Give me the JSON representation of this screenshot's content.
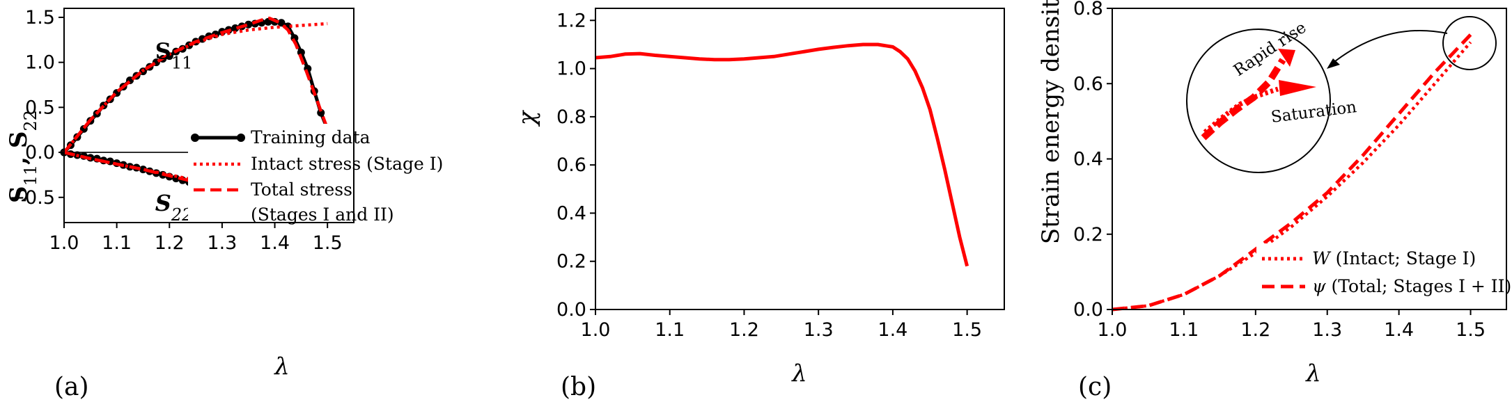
{
  "colors": {
    "red": "#ff0000",
    "black": "#000000"
  },
  "chart_data": [
    {
      "panel_label": "(a)",
      "type": "line",
      "xlabel": "λ",
      "ylabel": "S11, S22",
      "ylabel_parts": {
        "s1": "S",
        "sub1": "11",
        "comma": ", ",
        "s2": "S",
        "sub2": "22"
      },
      "xlim": [
        1.0,
        1.55
      ],
      "ylim": [
        -0.78,
        1.6
      ],
      "xticks": [
        1.0,
        1.1,
        1.2,
        1.3,
        1.4,
        1.5
      ],
      "xtick_labels": [
        "1.0",
        "1.1",
        "1.2",
        "1.3",
        "1.4",
        "1.5"
      ],
      "yticks": [
        -0.5,
        0.0,
        0.5,
        1.0,
        1.5
      ],
      "ytick_labels": [
        "−0.5",
        "0.0",
        "0.5",
        "1.0",
        "1.5"
      ],
      "hline": 0,
      "annotations": [
        {
          "base": "S",
          "sub": "11",
          "at": [
            1.12,
            1.0
          ]
        },
        {
          "base": "S",
          "sub": "22",
          "at": [
            1.12,
            -0.48
          ]
        }
      ],
      "legend": [
        {
          "label": "Training data",
          "style": "black-marker"
        },
        {
          "label": "Intact stress (Stage I)",
          "style": "red-dotted"
        },
        {
          "label": "Total stress",
          "style": "red-dashed"
        },
        {
          "label": "(Stages I and II)",
          "style": "none"
        }
      ],
      "series": [
        {
          "name": "Training data",
          "component": "S11",
          "x": [
            1.0,
            1.0125,
            1.025,
            1.0375,
            1.05,
            1.0625,
            1.075,
            1.0875,
            1.1,
            1.1125,
            1.125,
            1.1375,
            1.15,
            1.1625,
            1.175,
            1.1875,
            1.2,
            1.2125,
            1.225,
            1.2375,
            1.25,
            1.2625,
            1.275,
            1.2875,
            1.3,
            1.3125,
            1.325,
            1.3375,
            1.35,
            1.3625,
            1.375,
            1.3875,
            1.4,
            1.4125,
            1.425,
            1.4375,
            1.45,
            1.4625,
            1.475,
            1.4875,
            1.5
          ],
          "y": [
            0.0,
            0.08,
            0.17,
            0.26,
            0.35,
            0.43,
            0.52,
            0.59,
            0.66,
            0.73,
            0.8,
            0.85,
            0.9,
            0.95,
            1.0,
            1.04,
            1.07,
            1.12,
            1.15,
            1.19,
            1.23,
            1.26,
            1.29,
            1.31,
            1.34,
            1.36,
            1.38,
            1.4,
            1.42,
            1.43,
            1.44,
            1.45,
            1.45,
            1.44,
            1.4,
            1.27,
            1.11,
            0.93,
            0.68,
            0.44,
            0.26
          ]
        },
        {
          "name": "Training data",
          "component": "S22",
          "x": [
            1.0,
            1.0125,
            1.025,
            1.0375,
            1.05,
            1.0625,
            1.075,
            1.0875,
            1.1,
            1.1125,
            1.125,
            1.1375,
            1.15,
            1.1625,
            1.175,
            1.1875,
            1.2,
            1.2125,
            1.225,
            1.2375,
            1.25,
            1.2625,
            1.275,
            1.2875,
            1.3,
            1.3125,
            1.325,
            1.3375,
            1.35,
            1.3625,
            1.375,
            1.3875,
            1.4,
            1.4125,
            1.425,
            1.4375,
            1.45,
            1.4625,
            1.475,
            1.4875,
            1.5
          ],
          "y": [
            0.0,
            -0.02,
            -0.03,
            -0.04,
            -0.06,
            -0.07,
            -0.09,
            -0.1,
            -0.12,
            -0.14,
            -0.16,
            -0.17,
            -0.19,
            -0.21,
            -0.23,
            -0.25,
            -0.27,
            -0.29,
            -0.31,
            -0.33,
            -0.35,
            -0.37,
            -0.39,
            -0.41,
            -0.43,
            -0.45,
            -0.47,
            -0.49,
            -0.51,
            -0.53,
            -0.55,
            -0.57,
            -0.59,
            -0.6,
            -0.61,
            -0.6,
            -0.56,
            -0.47,
            -0.35,
            -0.24,
            -0.14
          ]
        },
        {
          "name": "Intact stress (Stage I)",
          "component": "S11",
          "x": [
            1.0,
            1.05,
            1.1,
            1.15,
            1.2,
            1.25,
            1.3,
            1.35,
            1.4,
            1.45,
            1.5
          ],
          "y": [
            0.0,
            0.36,
            0.67,
            0.91,
            1.09,
            1.22,
            1.31,
            1.36,
            1.39,
            1.41,
            1.43
          ]
        },
        {
          "name": "Intact stress (Stage I)",
          "component": "S22",
          "x": [
            1.0,
            1.05,
            1.1,
            1.15,
            1.2,
            1.25,
            1.3,
            1.35,
            1.4,
            1.45,
            1.5
          ],
          "y": [
            0.0,
            -0.07,
            -0.13,
            -0.19,
            -0.25,
            -0.31,
            -0.37,
            -0.42,
            -0.48,
            -0.55,
            -0.63
          ]
        },
        {
          "name": "Total stress",
          "component": "S11",
          "x": [
            1.0,
            1.05,
            1.1,
            1.15,
            1.2,
            1.25,
            1.3,
            1.35,
            1.375,
            1.39,
            1.41,
            1.425,
            1.44,
            1.46,
            1.48,
            1.5
          ],
          "y": [
            0.0,
            0.36,
            0.67,
            0.91,
            1.09,
            1.23,
            1.33,
            1.42,
            1.47,
            1.49,
            1.44,
            1.36,
            1.2,
            0.9,
            0.58,
            0.26
          ]
        },
        {
          "name": "Total stress",
          "component": "S22",
          "x": [
            1.0,
            1.05,
            1.1,
            1.15,
            1.2,
            1.25,
            1.3,
            1.35,
            1.4,
            1.42,
            1.44,
            1.46,
            1.48,
            1.5
          ],
          "y": [
            0.0,
            -0.07,
            -0.13,
            -0.19,
            -0.26,
            -0.33,
            -0.41,
            -0.49,
            -0.57,
            -0.58,
            -0.55,
            -0.44,
            -0.28,
            -0.13
          ]
        }
      ]
    },
    {
      "panel_label": "(b)",
      "type": "line",
      "xlabel": "λ",
      "ylabel": "χ",
      "xlim": [
        1.0,
        1.55
      ],
      "ylim": [
        0.0,
        1.25
      ],
      "xticks": [
        1.0,
        1.1,
        1.2,
        1.3,
        1.4,
        1.5
      ],
      "xtick_labels": [
        "1.0",
        "1.1",
        "1.2",
        "1.3",
        "1.4",
        "1.5"
      ],
      "yticks": [
        0.0,
        0.2,
        0.4,
        0.6,
        0.8,
        1.0,
        1.2
      ],
      "ytick_labels": [
        "0.0",
        "0.2",
        "0.4",
        "0.6",
        "0.8",
        "1.0",
        "1.2"
      ],
      "series": [
        {
          "x": [
            1.0,
            1.02,
            1.04,
            1.06,
            1.08,
            1.1,
            1.12,
            1.14,
            1.16,
            1.18,
            1.2,
            1.22,
            1.24,
            1.26,
            1.28,
            1.3,
            1.32,
            1.34,
            1.36,
            1.38,
            1.4,
            1.41,
            1.42,
            1.43,
            1.44,
            1.45,
            1.46,
            1.47,
            1.48,
            1.49,
            1.5
          ],
          "y": [
            1.045,
            1.05,
            1.06,
            1.062,
            1.055,
            1.05,
            1.045,
            1.04,
            1.037,
            1.037,
            1.04,
            1.045,
            1.05,
            1.06,
            1.07,
            1.08,
            1.088,
            1.095,
            1.1,
            1.1,
            1.09,
            1.07,
            1.04,
            0.99,
            0.92,
            0.83,
            0.71,
            0.58,
            0.44,
            0.3,
            0.18
          ]
        }
      ]
    },
    {
      "panel_label": "(c)",
      "type": "line",
      "xlabel": "λ",
      "ylabel": "Strain energy density",
      "xlim": [
        1.0,
        1.55
      ],
      "ylim": [
        0.0,
        0.8
      ],
      "xticks": [
        1.0,
        1.1,
        1.2,
        1.3,
        1.4,
        1.5
      ],
      "xtick_labels": [
        "1.0",
        "1.1",
        "1.2",
        "1.3",
        "1.4",
        "1.5"
      ],
      "yticks": [
        0.0,
        0.2,
        0.4,
        0.6,
        0.8
      ],
      "ytick_labels": [
        "0.0",
        "0.2",
        "0.4",
        "0.6",
        "0.8"
      ],
      "legend": [
        {
          "symbol": "W",
          "label": " (Intact; Stage I)",
          "style": "red-dotted"
        },
        {
          "symbol": "ψ",
          "label": " (Total; Stages I + II)",
          "style": "red-dashed"
        }
      ],
      "annotations": [
        {
          "text": "Rapid rise"
        },
        {
          "text": "Saturation"
        }
      ],
      "series": [
        {
          "name": "W (Intact; Stage I)",
          "x": [
            1.0,
            1.05,
            1.1,
            1.15,
            1.2,
            1.25,
            1.3,
            1.35,
            1.4,
            1.45,
            1.5
          ],
          "y": [
            0.0,
            0.01,
            0.04,
            0.09,
            0.15,
            0.22,
            0.3,
            0.39,
            0.49,
            0.6,
            0.71
          ]
        },
        {
          "name": "ψ (Total; Stages I + II)",
          "x": [
            1.0,
            1.05,
            1.1,
            1.15,
            1.2,
            1.25,
            1.3,
            1.35,
            1.4,
            1.45,
            1.5
          ],
          "y": [
            0.0,
            0.01,
            0.04,
            0.09,
            0.16,
            0.23,
            0.31,
            0.41,
            0.52,
            0.63,
            0.73
          ]
        }
      ]
    }
  ]
}
